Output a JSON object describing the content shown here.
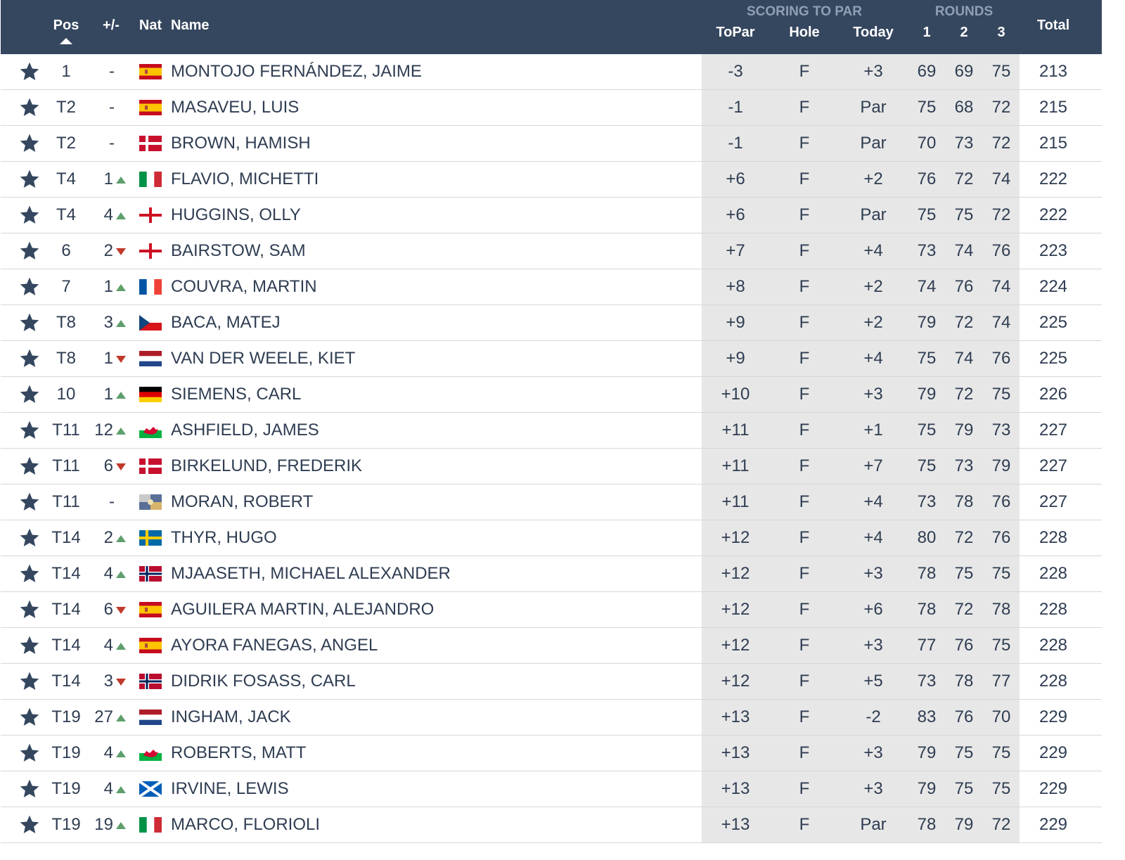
{
  "header": {
    "pos": "Pos",
    "change": "+/-",
    "nat": "Nat",
    "name": "Name",
    "scoring_group": "SCORING TO PAR",
    "topar": "ToPar",
    "hole": "Hole",
    "today": "Today",
    "rounds_group": "ROUNDS",
    "r1": "1",
    "r2": "2",
    "r3": "3",
    "total": "Total"
  },
  "colors": {
    "header_bg": "#35475f",
    "scoring_bg": "#e7e7e7",
    "up_arrow": "#5e9f6c",
    "down_arrow": "#c0392b",
    "text": "#2f3d52"
  },
  "rows": [
    {
      "pos": "1",
      "chg": "-",
      "dir": "none",
      "flag": "spain",
      "name": "MONTOJO FERNÁNDEZ, JAIME",
      "topar": "-3",
      "hole": "F",
      "today": "+3",
      "r1": "69",
      "r2": "69",
      "r3": "75",
      "total": "213"
    },
    {
      "pos": "T2",
      "chg": "-",
      "dir": "none",
      "flag": "spain",
      "name": "MASAVEU, LUIS",
      "topar": "-1",
      "hole": "F",
      "today": "Par",
      "r1": "75",
      "r2": "68",
      "r3": "72",
      "total": "215"
    },
    {
      "pos": "T2",
      "chg": "-",
      "dir": "none",
      "flag": "denmark",
      "name": "BROWN, HAMISH",
      "topar": "-1",
      "hole": "F",
      "today": "Par",
      "r1": "70",
      "r2": "73",
      "r3": "72",
      "total": "215"
    },
    {
      "pos": "T4",
      "chg": "1",
      "dir": "up",
      "flag": "italy",
      "name": "FLAVIO, MICHETTI",
      "topar": "+6",
      "hole": "F",
      "today": "+2",
      "r1": "76",
      "r2": "72",
      "r3": "74",
      "total": "222"
    },
    {
      "pos": "T4",
      "chg": "4",
      "dir": "up",
      "flag": "england",
      "name": "HUGGINS, OLLY",
      "topar": "+6",
      "hole": "F",
      "today": "Par",
      "r1": "75",
      "r2": "75",
      "r3": "72",
      "total": "222"
    },
    {
      "pos": "6",
      "chg": "2",
      "dir": "down",
      "flag": "england",
      "name": "BAIRSTOW, SAM",
      "topar": "+7",
      "hole": "F",
      "today": "+4",
      "r1": "73",
      "r2": "74",
      "r3": "76",
      "total": "223"
    },
    {
      "pos": "7",
      "chg": "1",
      "dir": "up",
      "flag": "france",
      "name": "COUVRA, MARTIN",
      "topar": "+8",
      "hole": "F",
      "today": "+2",
      "r1": "74",
      "r2": "76",
      "r3": "74",
      "total": "224"
    },
    {
      "pos": "T8",
      "chg": "3",
      "dir": "up",
      "flag": "czech",
      "name": "BACA, MATEJ",
      "topar": "+9",
      "hole": "F",
      "today": "+2",
      "r1": "79",
      "r2": "72",
      "r3": "74",
      "total": "225"
    },
    {
      "pos": "T8",
      "chg": "1",
      "dir": "down",
      "flag": "netherlands",
      "name": "VAN DER WEELE, KIET",
      "topar": "+9",
      "hole": "F",
      "today": "+4",
      "r1": "75",
      "r2": "74",
      "r3": "76",
      "total": "225"
    },
    {
      "pos": "10",
      "chg": "1",
      "dir": "up",
      "flag": "germany",
      "name": "SIEMENS, CARL",
      "topar": "+10",
      "hole": "F",
      "today": "+3",
      "r1": "79",
      "r2": "72",
      "r3": "75",
      "total": "226"
    },
    {
      "pos": "T11",
      "chg": "12",
      "dir": "up",
      "flag": "wales",
      "name": "ASHFIELD, JAMES",
      "topar": "+11",
      "hole": "F",
      "today": "+1",
      "r1": "75",
      "r2": "79",
      "r3": "73",
      "total": "227"
    },
    {
      "pos": "T11",
      "chg": "6",
      "dir": "down",
      "flag": "denmark",
      "name": "BIRKELUND, FREDERIK",
      "topar": "+11",
      "hole": "F",
      "today": "+7",
      "r1": "75",
      "r2": "73",
      "r3": "79",
      "total": "227"
    },
    {
      "pos": "T11",
      "chg": "-",
      "dir": "none",
      "flag": "other",
      "name": "MORAN, ROBERT",
      "topar": "+11",
      "hole": "F",
      "today": "+4",
      "r1": "73",
      "r2": "78",
      "r3": "76",
      "total": "227"
    },
    {
      "pos": "T14",
      "chg": "2",
      "dir": "up",
      "flag": "sweden",
      "name": "THYR, HUGO",
      "topar": "+12",
      "hole": "F",
      "today": "+4",
      "r1": "80",
      "r2": "72",
      "r3": "76",
      "total": "228"
    },
    {
      "pos": "T14",
      "chg": "4",
      "dir": "up",
      "flag": "norway",
      "name": "MJAASETH, MICHAEL ALEXANDER",
      "topar": "+12",
      "hole": "F",
      "today": "+3",
      "r1": "78",
      "r2": "75",
      "r3": "75",
      "total": "228"
    },
    {
      "pos": "T14",
      "chg": "6",
      "dir": "down",
      "flag": "spain",
      "name": "AGUILERA MARTIN, ALEJANDRO",
      "topar": "+12",
      "hole": "F",
      "today": "+6",
      "r1": "78",
      "r2": "72",
      "r3": "78",
      "total": "228"
    },
    {
      "pos": "T14",
      "chg": "4",
      "dir": "up",
      "flag": "spain",
      "name": "AYORA FANEGAS, ANGEL",
      "topar": "+12",
      "hole": "F",
      "today": "+3",
      "r1": "77",
      "r2": "76",
      "r3": "75",
      "total": "228"
    },
    {
      "pos": "T14",
      "chg": "3",
      "dir": "down",
      "flag": "norway",
      "name": "DIDRIK FOSASS, CARL",
      "topar": "+12",
      "hole": "F",
      "today": "+5",
      "r1": "73",
      "r2": "78",
      "r3": "77",
      "total": "228"
    },
    {
      "pos": "T19",
      "chg": "27",
      "dir": "up",
      "flag": "netherlands",
      "name": "INGHAM, JACK",
      "topar": "+13",
      "hole": "F",
      "today": "-2",
      "r1": "83",
      "r2": "76",
      "r3": "70",
      "total": "229"
    },
    {
      "pos": "T19",
      "chg": "4",
      "dir": "up",
      "flag": "wales",
      "name": "ROBERTS, MATT",
      "topar": "+13",
      "hole": "F",
      "today": "+3",
      "r1": "79",
      "r2": "75",
      "r3": "75",
      "total": "229"
    },
    {
      "pos": "T19",
      "chg": "4",
      "dir": "up",
      "flag": "scotland",
      "name": "IRVINE, LEWIS",
      "topar": "+13",
      "hole": "F",
      "today": "+3",
      "r1": "79",
      "r2": "75",
      "r3": "75",
      "total": "229"
    },
    {
      "pos": "T19",
      "chg": "19",
      "dir": "up",
      "flag": "italy",
      "name": "MARCO, FLORIOLI",
      "topar": "+13",
      "hole": "F",
      "today": "Par",
      "r1": "78",
      "r2": "79",
      "r3": "72",
      "total": "229"
    }
  ]
}
